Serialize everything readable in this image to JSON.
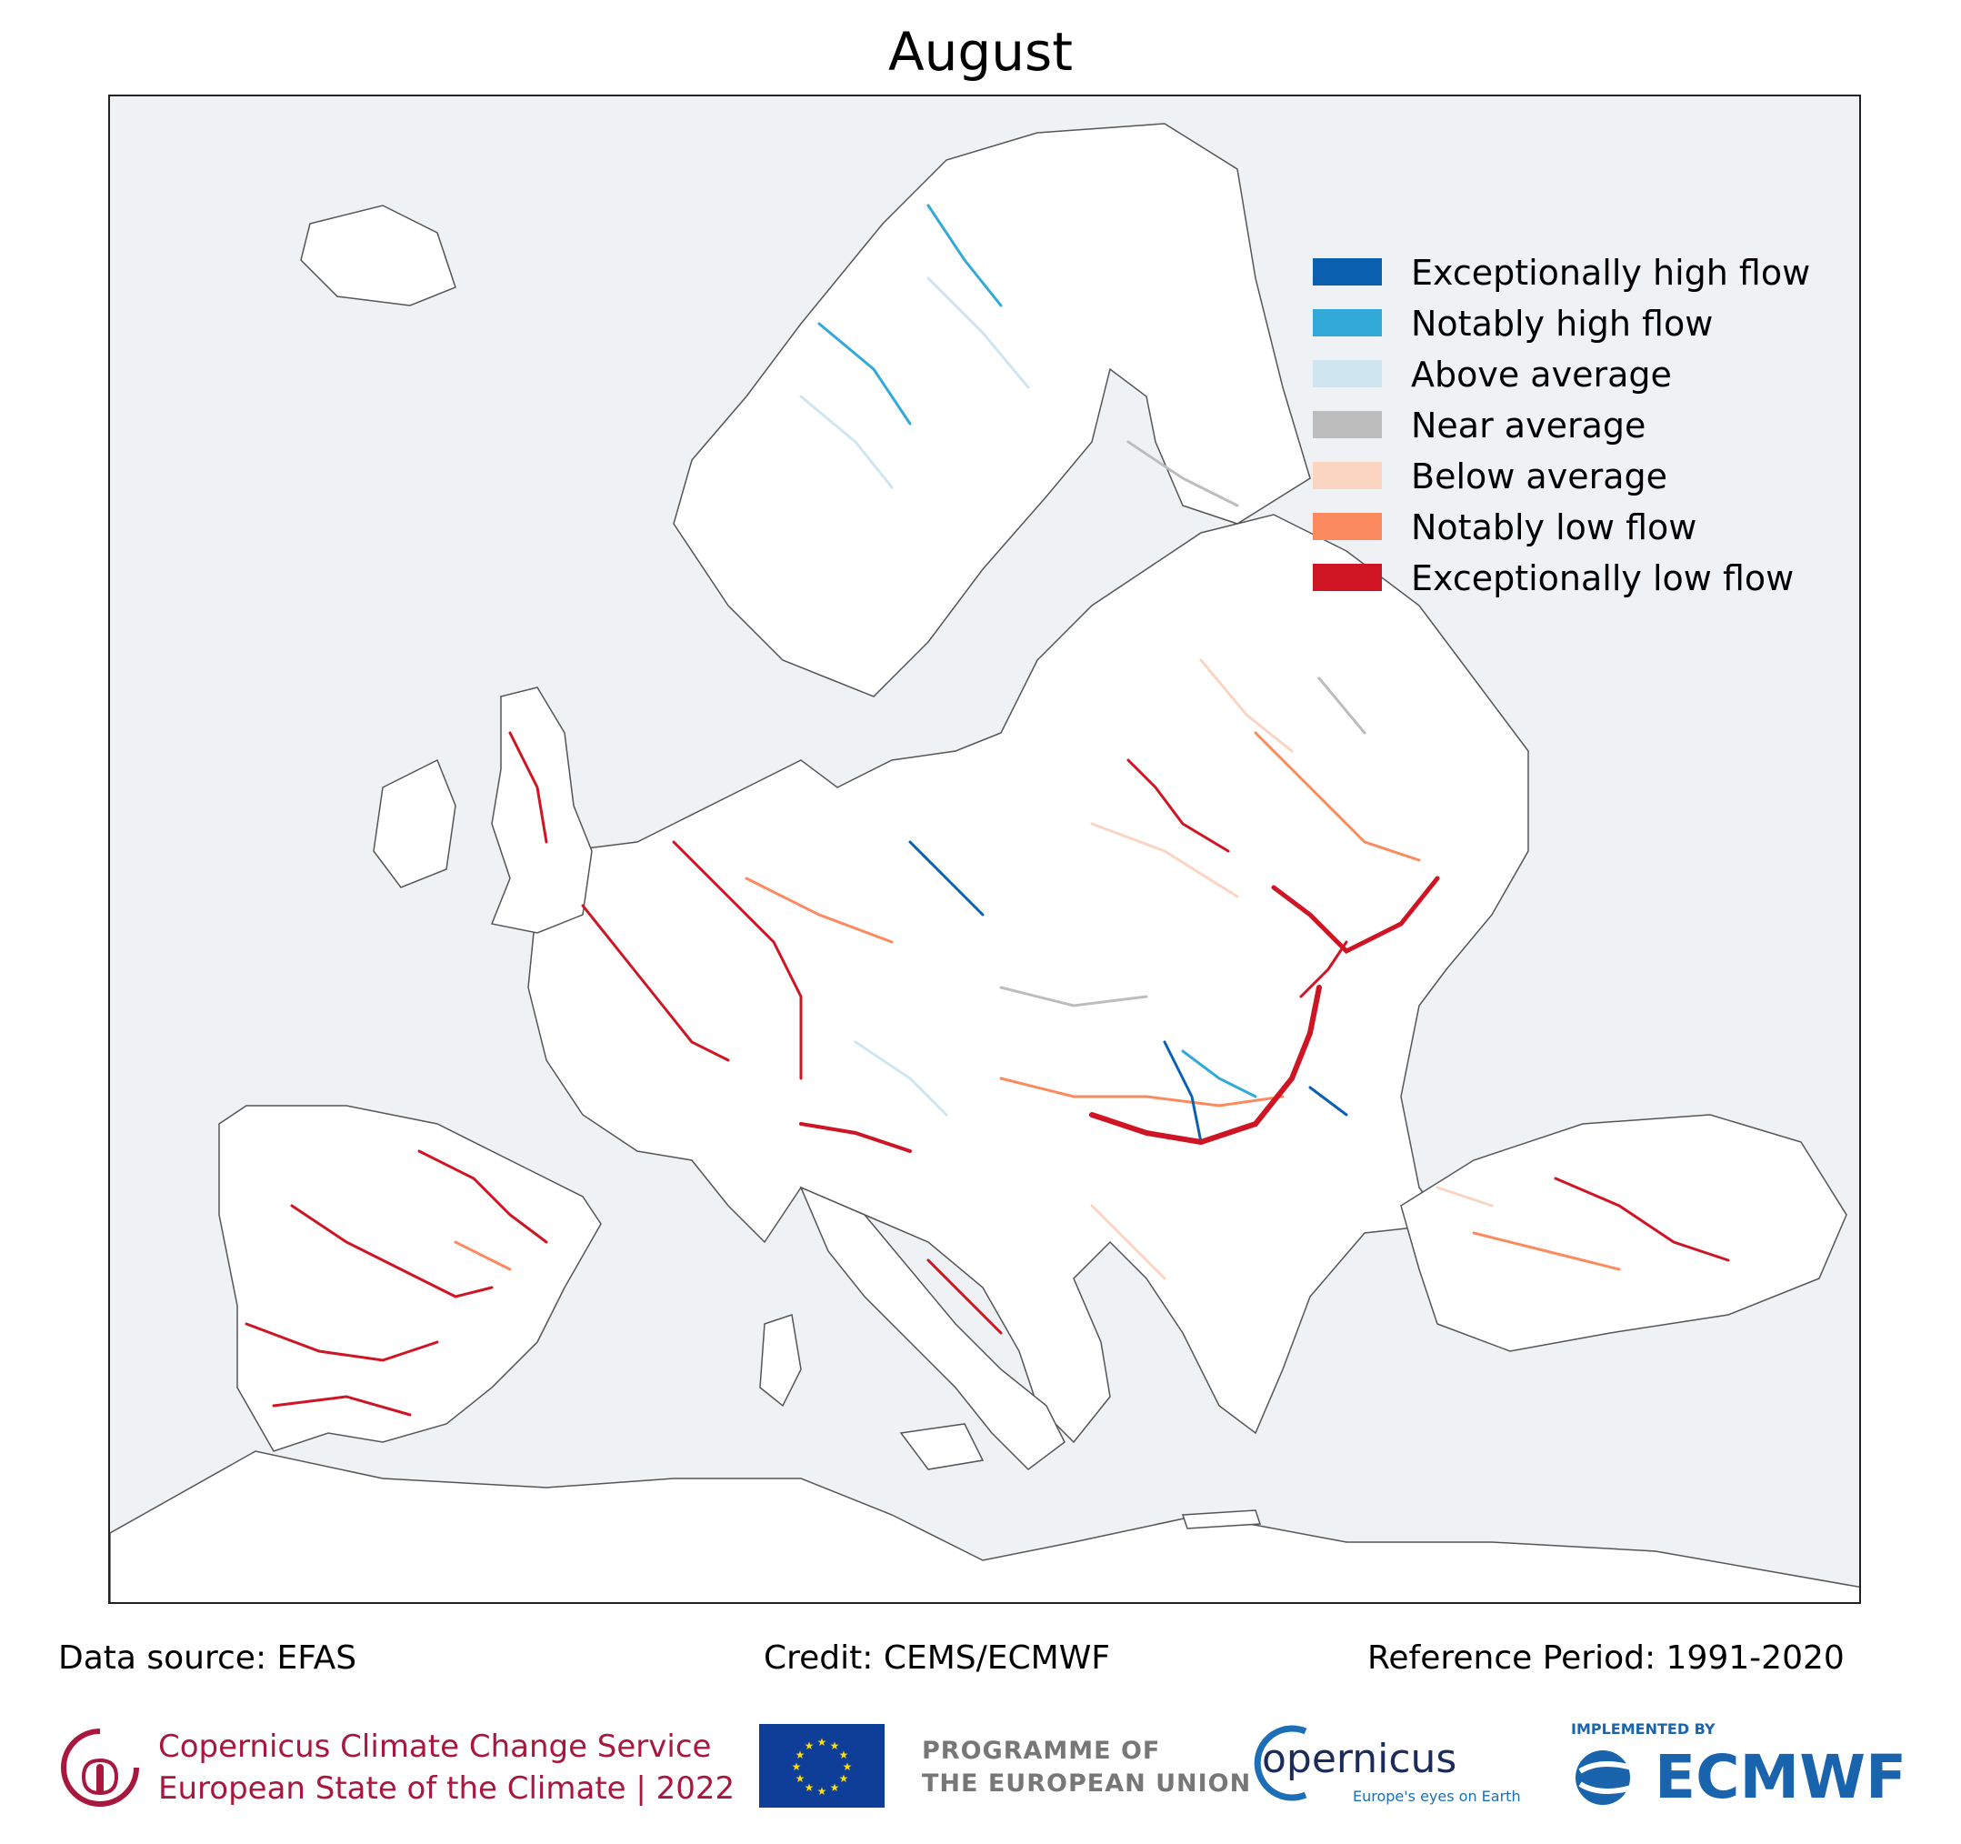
{
  "title": "August",
  "legend": {
    "items": [
      {
        "label": "Exceptionally high flow",
        "color": "#0b60b0"
      },
      {
        "label": "Notably high flow",
        "color": "#32a9d8"
      },
      {
        "label": "Above average",
        "color": "#cfe6f0"
      },
      {
        "label": "Near average",
        "color": "#bdbdbd"
      },
      {
        "label": "Below average",
        "color": "#fcd5c2"
      },
      {
        "label": "Notably low flow",
        "color": "#fb8a5f"
      },
      {
        "label": "Exceptionally low flow",
        "color": "#cf1424"
      }
    ]
  },
  "footer": {
    "data_source": "Data source: EFAS",
    "credit": "Credit: CEMS/ECMWF",
    "reference_period": "Reference Period: 1991-2020"
  },
  "logos": {
    "c3s_line1": "Copernicus Climate Change Service",
    "c3s_line2": "European State of the Climate | 2022",
    "eu_line1": "PROGRAMME OF",
    "eu_line2": "THE EUROPEAN UNION",
    "copernicus": "opernicus",
    "copernicus_tagline": "Europe's eyes on Earth",
    "ecmwf_implemented": "IMPLEMENTED BY",
    "ecmwf": "ECMWF"
  },
  "map": {
    "sea_color": "#eef2f5",
    "land_color": "#ffffff",
    "coast_color": "#555555"
  }
}
